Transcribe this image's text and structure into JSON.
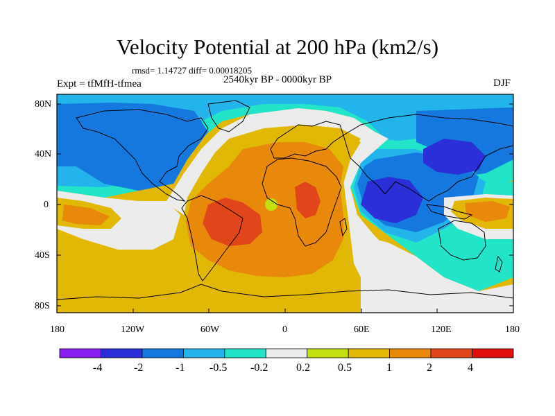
{
  "chart_data": {
    "type": "filled-contour map",
    "title": "Velocity Potential at 200 hPa (km2/s)",
    "stats": "rmsd= 1.14727 diff= 0.00018205",
    "period": "2540kyr BP - 0000kyr BP",
    "experiment": "Expt = tfMfH-tfmea",
    "season": "DJF",
    "lat_ticks": [
      "80N",
      "40N",
      "0",
      "40S",
      "80S"
    ],
    "lon_ticks": [
      "180",
      "120W",
      "60W",
      "0",
      "60E",
      "120E",
      "180"
    ],
    "lat_range": [
      -90,
      90
    ],
    "lon_range": [
      -180,
      180
    ],
    "colorbar": {
      "levels": [
        "-4",
        "-2",
        "-1",
        "-0.5",
        "-0.2",
        "0.2",
        "0.5",
        "1",
        "2",
        "4"
      ],
      "colors": [
        "#8a1ef0",
        "#2a2fd8",
        "#1478de",
        "#22b4ea",
        "#22e4c8",
        "#ececec",
        "#c4e010",
        "#e2b806",
        "#e9890c",
        "#e0461a",
        "#e00e0e"
      ]
    }
  }
}
